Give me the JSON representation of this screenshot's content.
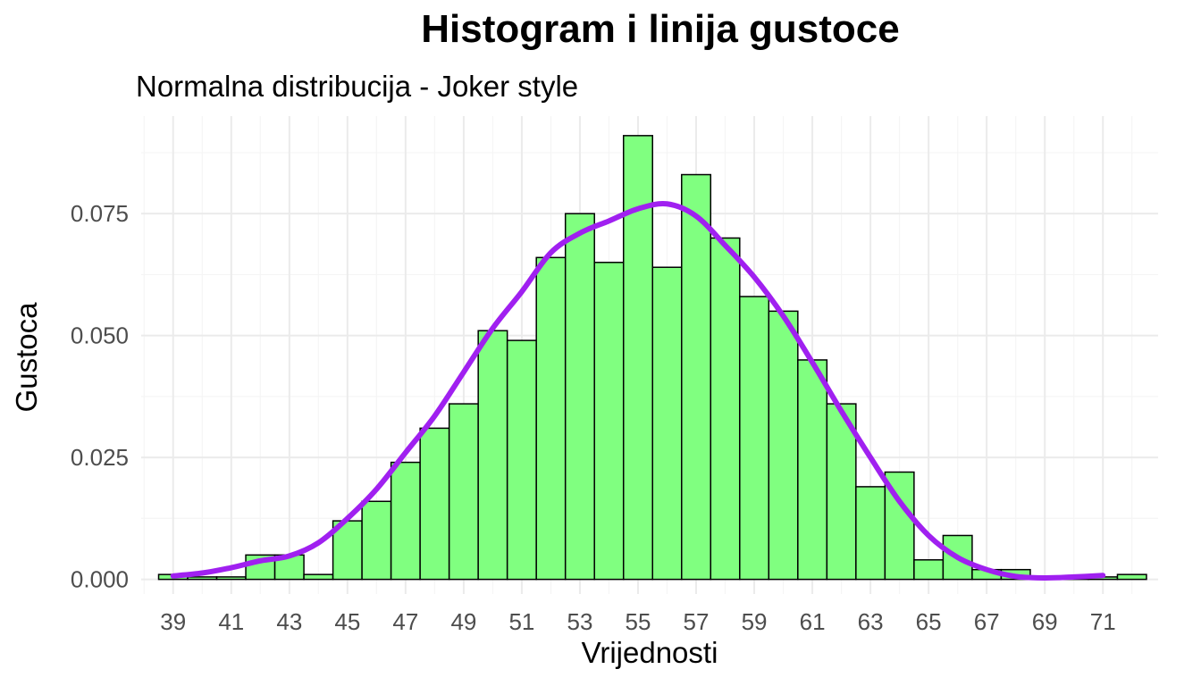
{
  "chart_data": {
    "type": "bar",
    "title": "Histogram i linija gustoce",
    "subtitle": "Normalna distribucija - Joker style",
    "xlabel": "Vrijednosti",
    "ylabel": "Gustoca",
    "xlim": [
      37.9,
      72.9
    ],
    "ylim": [
      -0.003,
      0.095
    ],
    "x_ticks": [
      39,
      41,
      43,
      45,
      47,
      49,
      51,
      53,
      55,
      57,
      59,
      61,
      63,
      65,
      67,
      69,
      71
    ],
    "y_ticks": [
      0.0,
      0.025,
      0.05,
      0.075
    ],
    "y_tick_labels": [
      "0.000",
      "0.025",
      "0.050",
      "0.075"
    ],
    "grid": true,
    "bin_width": 1,
    "bin_centers": [
      39,
      40,
      41,
      42,
      43,
      44,
      45,
      46,
      47,
      48,
      49,
      50,
      51,
      52,
      53,
      54,
      55,
      56,
      57,
      58,
      59,
      60,
      61,
      62,
      63,
      64,
      65,
      66,
      67,
      68,
      69,
      70,
      71,
      72
    ],
    "values": [
      0.001,
      0.0005,
      0.0005,
      0.005,
      0.005,
      0.001,
      0.012,
      0.016,
      0.024,
      0.031,
      0.036,
      0.051,
      0.049,
      0.066,
      0.075,
      0.065,
      0.091,
      0.064,
      0.083,
      0.07,
      0.058,
      0.055,
      0.045,
      0.036,
      0.019,
      0.022,
      0.004,
      0.009,
      0.002,
      0.002,
      0.0005,
      0.0005,
      0.0005,
      0.001
    ],
    "density_line": {
      "x": [
        39,
        40,
        41,
        42,
        43,
        44,
        45,
        46,
        47,
        48,
        49,
        50,
        51,
        52,
        53,
        54,
        55,
        56,
        57,
        58,
        59,
        60,
        61,
        62,
        63,
        64,
        65,
        66,
        67,
        68,
        69,
        70,
        71
      ],
      "y": [
        0.0007,
        0.0013,
        0.0024,
        0.0038,
        0.0048,
        0.0075,
        0.0125,
        0.0185,
        0.026,
        0.0335,
        0.0425,
        0.0515,
        0.059,
        0.067,
        0.071,
        0.0735,
        0.076,
        0.077,
        0.0745,
        0.0685,
        0.062,
        0.054,
        0.0445,
        0.0345,
        0.025,
        0.016,
        0.009,
        0.0045,
        0.002,
        0.0006,
        0.0003,
        0.0005,
        0.0008
      ]
    },
    "colors": {
      "bar_fill": "#80ff80",
      "bar_stroke": "#000000",
      "line": "#a020f0",
      "grid_major": "#ebebeb",
      "grid_minor": "#f5f5f5"
    }
  }
}
